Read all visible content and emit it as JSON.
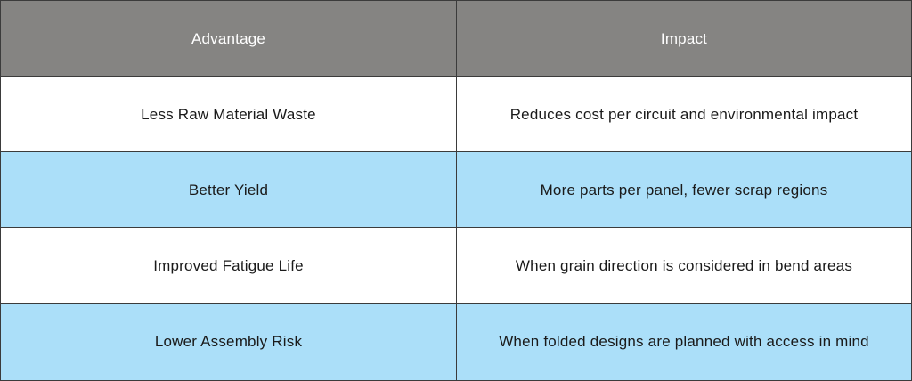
{
  "table": {
    "columns": [
      "Advantage",
      "Impact"
    ],
    "rows": [
      {
        "advantage": "Less Raw Material Waste",
        "impact": "Reduces cost per circuit and environmental impact"
      },
      {
        "advantage": "Better Yield",
        "impact": "More parts per panel, fewer scrap regions"
      },
      {
        "advantage": "Improved Fatigue Life",
        "impact": "When grain direction is considered in bend areas"
      },
      {
        "advantage": "Lower Assembly Risk",
        "impact": "When folded designs are planned with access in mind"
      }
    ]
  },
  "colors": {
    "header_bg": "#858482",
    "header_text": "#ffffff",
    "row_white": "#ffffff",
    "row_blue": "#abdff9",
    "border": "#3b3b3b"
  }
}
